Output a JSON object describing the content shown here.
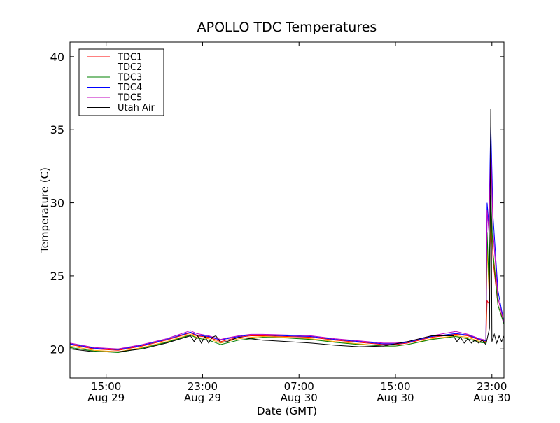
{
  "chart_data": {
    "type": "line",
    "title": "APOLLO TDC Temperatures",
    "xlabel": "Date (GMT)",
    "ylabel": "Temperature (C)",
    "xlim": [
      12.0,
      48.0
    ],
    "ylim": [
      18,
      41
    ],
    "yticks": [
      20,
      25,
      30,
      35,
      40
    ],
    "xticks": [
      {
        "x": 15,
        "time": "15:00",
        "date": "Aug 29"
      },
      {
        "x": 23,
        "time": "23:00",
        "date": "Aug 29"
      },
      {
        "x": 31,
        "time": "07:00",
        "date": "Aug 30"
      },
      {
        "x": 39,
        "time": "15:00",
        "date": "Aug 30"
      },
      {
        "x": 47,
        "time": "23:00",
        "date": "Aug 30"
      }
    ],
    "legend_location": "top-left",
    "series": [
      {
        "name": "TDC1",
        "color": "#ff0000",
        "x": [
          12,
          14,
          16,
          18,
          20,
          22,
          22.5,
          23.5,
          24.5,
          25,
          26,
          27,
          28,
          30,
          32,
          34,
          36,
          38,
          39,
          40,
          42,
          44,
          45,
          46,
          46.5,
          46.6,
          46.75,
          46.9,
          47.1,
          47.5,
          48
        ],
        "y": [
          20.3,
          20.0,
          19.9,
          20.2,
          20.6,
          21.1,
          20.9,
          20.8,
          20.5,
          20.6,
          20.8,
          20.9,
          20.9,
          20.85,
          20.8,
          20.6,
          20.45,
          20.3,
          20.3,
          20.4,
          20.8,
          21.0,
          20.9,
          20.6,
          20.5,
          23.3,
          23.1,
          29.5,
          26.0,
          23.0,
          21.8
        ]
      },
      {
        "name": "TDC2",
        "color": "#ffa500",
        "x": [
          12,
          14,
          16,
          18,
          20,
          22,
          22.5,
          23.5,
          24.5,
          25,
          26,
          27,
          28,
          30,
          32,
          34,
          36,
          38,
          39,
          40,
          42,
          44,
          45,
          46,
          46.5,
          46.6,
          46.75,
          46.9,
          47.1,
          47.5,
          48
        ],
        "y": [
          20.2,
          19.9,
          19.8,
          20.1,
          20.5,
          21.0,
          20.8,
          20.7,
          20.4,
          20.5,
          20.7,
          20.8,
          20.85,
          20.8,
          20.7,
          20.5,
          20.35,
          20.2,
          20.2,
          20.3,
          20.7,
          20.9,
          20.8,
          20.5,
          20.4,
          27.0,
          24.0,
          29.0,
          26.5,
          23.5,
          21.8
        ]
      },
      {
        "name": "TDC3",
        "color": "#008000",
        "x": [
          12,
          14,
          16,
          18,
          20,
          22,
          22.5,
          23.5,
          24.5,
          25,
          26,
          27,
          28,
          30,
          32,
          34,
          36,
          38,
          39,
          40,
          42,
          44,
          45,
          46,
          46.5,
          46.6,
          46.75,
          46.9,
          47.1,
          47.5,
          48
        ],
        "y": [
          20.1,
          19.85,
          19.75,
          20.05,
          20.45,
          20.95,
          20.75,
          20.6,
          20.3,
          20.4,
          20.6,
          20.7,
          20.8,
          20.75,
          20.65,
          20.45,
          20.3,
          20.2,
          20.2,
          20.3,
          20.65,
          20.85,
          20.7,
          20.45,
          20.4,
          28.0,
          24.5,
          30.5,
          26.5,
          23.0,
          21.7
        ]
      },
      {
        "name": "TDC4",
        "color": "#0000ff",
        "x": [
          12,
          14,
          16,
          18,
          20,
          22,
          22.5,
          23.5,
          24.5,
          25,
          26,
          27,
          28,
          30,
          32,
          34,
          36,
          38,
          39,
          40,
          42,
          44,
          45,
          46,
          46.5,
          46.6,
          46.75,
          46.9,
          47.1,
          47.5,
          48
        ],
        "y": [
          20.35,
          20.05,
          19.95,
          20.25,
          20.65,
          21.15,
          20.95,
          20.85,
          20.6,
          20.7,
          20.85,
          20.95,
          20.95,
          20.9,
          20.85,
          20.65,
          20.5,
          20.35,
          20.35,
          20.45,
          20.85,
          21.05,
          20.95,
          20.65,
          20.55,
          30.0,
          28.5,
          35.5,
          29.0,
          24.0,
          21.8
        ]
      },
      {
        "name": "TDC5",
        "color": "#bf00bf",
        "x": [
          12,
          14,
          16,
          18,
          20,
          22,
          22.5,
          23.5,
          24.5,
          25,
          26,
          27,
          28,
          30,
          32,
          34,
          36,
          38,
          39,
          40,
          42,
          44,
          45,
          46,
          46.5,
          46.6,
          46.75,
          46.9,
          47.1,
          47.5,
          48
        ],
        "y": [
          20.4,
          20.1,
          20.0,
          20.3,
          20.7,
          21.25,
          21.05,
          20.9,
          20.65,
          20.75,
          20.9,
          21.0,
          21.0,
          20.95,
          20.9,
          20.7,
          20.55,
          20.4,
          20.4,
          20.5,
          20.9,
          21.2,
          21.0,
          20.7,
          20.6,
          29.5,
          28.0,
          34.0,
          28.0,
          23.5,
          21.8
        ]
      },
      {
        "name": "Utah Air",
        "color": "#000000",
        "x": [
          12,
          14,
          16,
          18,
          20,
          22,
          22.3,
          22.6,
          22.9,
          23.2,
          23.5,
          23.8,
          24.1,
          24.5,
          25,
          26,
          27,
          28,
          30,
          32,
          34,
          36,
          38,
          40,
          42,
          43.8,
          44.1,
          44.4,
          44.7,
          45,
          45.3,
          45.6,
          45.9,
          46.2,
          46.5,
          46.8,
          46.9,
          47.0,
          47.2,
          47.4,
          47.6,
          47.8,
          48
        ],
        "y": [
          20.0,
          19.8,
          19.8,
          20.0,
          20.4,
          20.9,
          20.5,
          20.9,
          20.4,
          20.85,
          20.4,
          20.8,
          20.9,
          20.45,
          20.5,
          20.8,
          20.7,
          20.6,
          20.5,
          20.4,
          20.25,
          20.15,
          20.2,
          20.5,
          20.9,
          20.9,
          20.5,
          20.8,
          20.4,
          20.7,
          20.4,
          20.6,
          20.4,
          20.6,
          20.3,
          21.4,
          36.4,
          20.5,
          21.0,
          20.4,
          20.9,
          20.5,
          20.9
        ]
      }
    ]
  }
}
